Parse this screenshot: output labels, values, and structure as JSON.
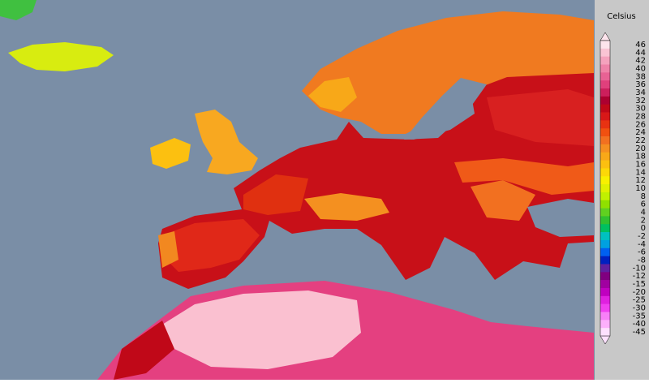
{
  "legend": {
    "title": "Celsius",
    "entries": [
      {
        "label": "46",
        "color": "#fde4ec"
      },
      {
        "label": "44",
        "color": "#fac4d4"
      },
      {
        "label": "42",
        "color": "#f5a2bd"
      },
      {
        "label": "40",
        "color": "#ef82a8"
      },
      {
        "label": "38",
        "color": "#e86294"
      },
      {
        "label": "36",
        "color": "#e0407c"
      },
      {
        "label": "34",
        "color": "#cc1f5c"
      },
      {
        "label": "32",
        "color": "#ac0030"
      },
      {
        "label": "30",
        "color": "#c00818"
      },
      {
        "label": "28",
        "color": "#d81818"
      },
      {
        "label": "26",
        "color": "#e83212"
      },
      {
        "label": "24",
        "color": "#f05010"
      },
      {
        "label": "22",
        "color": "#f27020"
      },
      {
        "label": "20",
        "color": "#f58f20"
      },
      {
        "label": "18",
        "color": "#f8a818"
      },
      {
        "label": "16",
        "color": "#fcc010"
      },
      {
        "label": "14",
        "color": "#fcd808"
      },
      {
        "label": "12",
        "color": "#f8f000"
      },
      {
        "label": "10",
        "color": "#e0f000"
      },
      {
        "label": "8",
        "color": "#c0f000"
      },
      {
        "label": "6",
        "color": "#90e000"
      },
      {
        "label": "4",
        "color": "#60d020"
      },
      {
        "label": "2",
        "color": "#30c030"
      },
      {
        "label": "0",
        "color": "#00c060"
      },
      {
        "label": "-2",
        "color": "#00c0c0"
      },
      {
        "label": "-4",
        "color": "#00a0e0"
      },
      {
        "label": "-6",
        "color": "#0060f0"
      },
      {
        "label": "-8",
        "color": "#0020c0"
      },
      {
        "label": "-10",
        "color": "#6020a0"
      },
      {
        "label": "-12",
        "color": "#800080"
      },
      {
        "label": "-15",
        "color": "#a000a0"
      },
      {
        "label": "-20",
        "color": "#c000c0"
      },
      {
        "label": "-25",
        "color": "#e020e0"
      },
      {
        "label": "-30",
        "color": "#f040f0"
      },
      {
        "label": "-35",
        "color": "#f880f8"
      },
      {
        "label": "-40",
        "color": "#fcb0fc"
      },
      {
        "label": "-45",
        "color": "#fde0fe"
      }
    ]
  }
}
